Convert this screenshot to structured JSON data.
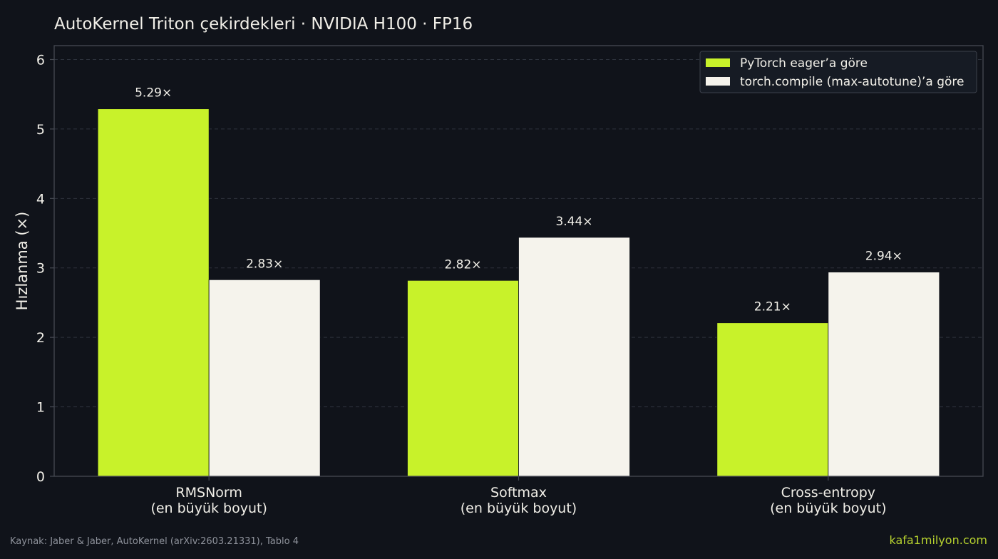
{
  "footer": {
    "source": "Kaynak: Jaber & Jaber, AutoKernel (arXiv:2603.21331), Tablo 4",
    "brand": "kafa1milyon.com"
  },
  "colors": {
    "background": "#10131a",
    "eager": "#c8f22a",
    "compile": "#f5f3ec",
    "grid": "#2e333d",
    "axis": "#464a53",
    "text": "#f1efe8",
    "brand": "#b7d22f"
  },
  "chart_data": {
    "type": "bar",
    "title": "AutoKernel Triton çekirdekleri · NVIDIA H100 · FP16",
    "xlabel": "",
    "ylabel": "Hızlanma (×)",
    "ylim": [
      0,
      6.2
    ],
    "yticks": [
      "0",
      "1",
      "2",
      "3",
      "4",
      "5",
      "6"
    ],
    "grid": true,
    "legend_position": "top-right",
    "categories": [
      [
        "RMSNorm",
        "(en büyük boyut)"
      ],
      [
        "Softmax",
        "(en büyük boyut)"
      ],
      [
        "Cross-entropy",
        "(en büyük boyut)"
      ]
    ],
    "series": [
      {
        "name": "PyTorch eager’a göre",
        "color": "#c8f22a",
        "values": [
          5.29,
          2.82,
          2.21
        ],
        "labels": [
          "5.29×",
          "2.82×",
          "2.21×"
        ]
      },
      {
        "name": "torch.compile (max-autotune)’a göre",
        "color": "#f5f3ec",
        "values": [
          2.83,
          3.44,
          2.94
        ],
        "labels": [
          "2.83×",
          "3.44×",
          "2.94×"
        ]
      }
    ]
  }
}
